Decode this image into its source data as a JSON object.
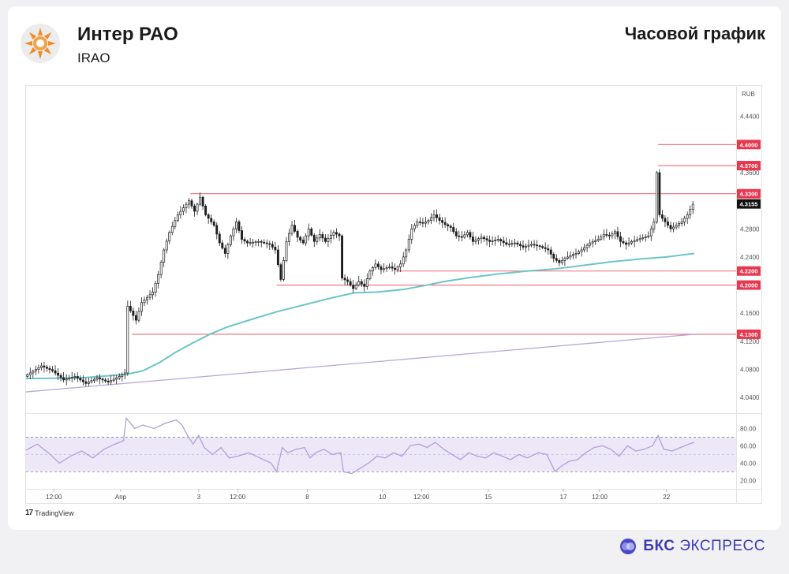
{
  "header": {
    "company": "Интер РАО",
    "ticker": "IRAO",
    "timeframe_title": "Часовой график"
  },
  "watermark": "TradingView",
  "brand": {
    "bold": "БКС",
    "regular": "ЭКСПРЕСС"
  },
  "colors": {
    "candle": "#1e1e1e",
    "ma": "#6dc5c7",
    "trend": "#b9a7d9",
    "level": "#ef6a77",
    "rsi": "#b29fdc",
    "rsi_band": "#ece8f8"
  },
  "chart_data": [
    {
      "type": "candlestick",
      "currency": "RUB",
      "ylim": [
        4.02,
        4.48
      ],
      "y_ticks": [
        "4.4400",
        "4.3600",
        "4.2800",
        "4.2400",
        "4.1600",
        "4.1200",
        "4.0800",
        "4.0400"
      ],
      "x_ticks": [
        {
          "label": "12:00",
          "i": 10
        },
        {
          "label": "Апр",
          "i": 34
        },
        {
          "label": "3",
          "i": 62
        },
        {
          "label": "12:00",
          "i": 76
        },
        {
          "label": "8",
          "i": 101
        },
        {
          "label": "10",
          "i": 128
        },
        {
          "label": "12:00",
          "i": 142
        },
        {
          "label": "15",
          "i": 166
        },
        {
          "label": "17",
          "i": 193
        },
        {
          "label": "12:00",
          "i": 206
        },
        {
          "label": "22",
          "i": 230
        }
      ],
      "levels": [
        {
          "label": "4.4000",
          "value": 4.4,
          "from_i": 227
        },
        {
          "label": "4.3700",
          "value": 4.37,
          "from_i": 227
        },
        {
          "label": "4.3300",
          "value": 4.33,
          "from_i": 59
        },
        {
          "label": "4.2200",
          "value": 4.22,
          "from_i": 133
        },
        {
          "label": "4.2000",
          "value": 4.2,
          "from_i": 90
        },
        {
          "label": "4.1300",
          "value": 4.13,
          "from_i": 38
        }
      ],
      "last_price": "4.3155",
      "last_value": 4.3155,
      "trendline": [
        {
          "i": 0,
          "v": 4.048
        },
        {
          "i": 240,
          "v": 4.13
        }
      ],
      "ma_points": [
        [
          0,
          4.067
        ],
        [
          20,
          4.068
        ],
        [
          36,
          4.073
        ],
        [
          42,
          4.078
        ],
        [
          48,
          4.09
        ],
        [
          54,
          4.105
        ],
        [
          60,
          4.118
        ],
        [
          66,
          4.13
        ],
        [
          72,
          4.14
        ],
        [
          80,
          4.15
        ],
        [
          90,
          4.162
        ],
        [
          100,
          4.172
        ],
        [
          110,
          4.182
        ],
        [
          118,
          4.189
        ],
        [
          126,
          4.19
        ],
        [
          136,
          4.194
        ],
        [
          144,
          4.2
        ],
        [
          150,
          4.205
        ],
        [
          160,
          4.211
        ],
        [
          170,
          4.216
        ],
        [
          180,
          4.22
        ],
        [
          190,
          4.223
        ],
        [
          200,
          4.228
        ],
        [
          210,
          4.233
        ],
        [
          220,
          4.237
        ],
        [
          230,
          4.24
        ],
        [
          240,
          4.245
        ]
      ],
      "price_path": [
        [
          0,
          4.07
        ],
        [
          6,
          4.085
        ],
        [
          10,
          4.078
        ],
        [
          14,
          4.065
        ],
        [
          18,
          4.07
        ],
        [
          22,
          4.06
        ],
        [
          26,
          4.068
        ],
        [
          30,
          4.062
        ],
        [
          34,
          4.07
        ],
        [
          36,
          4.075
        ],
        [
          37,
          4.17
        ],
        [
          40,
          4.15
        ],
        [
          42,
          4.175
        ],
        [
          46,
          4.19
        ],
        [
          48,
          4.215
        ],
        [
          50,
          4.25
        ],
        [
          52,
          4.275
        ],
        [
          55,
          4.3
        ],
        [
          57,
          4.31
        ],
        [
          59,
          4.32
        ],
        [
          61,
          4.305
        ],
        [
          63,
          4.325
        ],
        [
          65,
          4.3
        ],
        [
          68,
          4.285
        ],
        [
          70,
          4.26
        ],
        [
          72,
          4.245
        ],
        [
          74,
          4.27
        ],
        [
          76,
          4.29
        ],
        [
          78,
          4.265
        ],
        [
          80,
          4.26
        ],
        [
          84,
          4.262
        ],
        [
          88,
          4.258
        ],
        [
          90,
          4.25
        ],
        [
          92,
          4.208
        ],
        [
          94,
          4.262
        ],
        [
          96,
          4.285
        ],
        [
          98,
          4.268
        ],
        [
          100,
          4.26
        ],
        [
          102,
          4.28
        ],
        [
          104,
          4.262
        ],
        [
          106,
          4.272
        ],
        [
          108,
          4.262
        ],
        [
          111,
          4.275
        ],
        [
          113,
          4.27
        ],
        [
          114,
          4.21
        ],
        [
          116,
          4.205
        ],
        [
          118,
          4.195
        ],
        [
          120,
          4.205
        ],
        [
          122,
          4.198
        ],
        [
          124,
          4.22
        ],
        [
          126,
          4.23
        ],
        [
          128,
          4.222
        ],
        [
          131,
          4.226
        ],
        [
          133,
          4.222
        ],
        [
          135,
          4.23
        ],
        [
          137,
          4.25
        ],
        [
          139,
          4.28
        ],
        [
          141,
          4.29
        ],
        [
          143,
          4.288
        ],
        [
          145,
          4.292
        ],
        [
          147,
          4.3
        ],
        [
          149,
          4.292
        ],
        [
          151,
          4.286
        ],
        [
          153,
          4.282
        ],
        [
          155,
          4.27
        ],
        [
          157,
          4.268
        ],
        [
          159,
          4.275
        ],
        [
          161,
          4.262
        ],
        [
          164,
          4.268
        ],
        [
          167,
          4.262
        ],
        [
          170,
          4.265
        ],
        [
          173,
          4.258
        ],
        [
          176,
          4.26
        ],
        [
          179,
          4.254
        ],
        [
          182,
          4.258
        ],
        [
          185,
          4.255
        ],
        [
          188,
          4.25
        ],
        [
          190,
          4.238
        ],
        [
          192,
          4.232
        ],
        [
          194,
          4.238
        ],
        [
          196,
          4.242
        ],
        [
          198,
          4.245
        ],
        [
          200,
          4.25
        ],
        [
          203,
          4.26
        ],
        [
          206,
          4.265
        ],
        [
          208,
          4.272
        ],
        [
          210,
          4.27
        ],
        [
          212,
          4.276
        ],
        [
          214,
          4.262
        ],
        [
          216,
          4.258
        ],
        [
          218,
          4.262
        ],
        [
          221,
          4.266
        ],
        [
          224,
          4.27
        ],
        [
          226,
          4.29
        ],
        [
          227,
          4.36
        ],
        [
          228,
          4.3
        ],
        [
          230,
          4.29
        ],
        [
          232,
          4.28
        ],
        [
          234,
          4.285
        ],
        [
          236,
          4.29
        ],
        [
          238,
          4.3
        ],
        [
          240,
          4.315
        ]
      ]
    },
    {
      "type": "line",
      "indicator": "RSI",
      "ylim": [
        13,
        95
      ],
      "y_ticks": [
        "80.00",
        "60.00",
        "40.00",
        "20.00"
      ],
      "band": [
        30,
        70
      ],
      "points": [
        [
          0,
          55
        ],
        [
          4,
          62
        ],
        [
          8,
          52
        ],
        [
          12,
          40
        ],
        [
          16,
          48
        ],
        [
          20,
          54
        ],
        [
          24,
          46
        ],
        [
          28,
          56
        ],
        [
          32,
          62
        ],
        [
          35,
          66
        ],
        [
          36,
          92
        ],
        [
          39,
          80
        ],
        [
          42,
          84
        ],
        [
          46,
          80
        ],
        [
          50,
          86
        ],
        [
          54,
          90
        ],
        [
          56,
          84
        ],
        [
          58,
          72
        ],
        [
          60,
          62
        ],
        [
          62,
          72
        ],
        [
          64,
          58
        ],
        [
          67,
          50
        ],
        [
          70,
          58
        ],
        [
          73,
          46
        ],
        [
          76,
          48
        ],
        [
          80,
          52
        ],
        [
          84,
          46
        ],
        [
          88,
          40
        ],
        [
          90,
          30
        ],
        [
          92,
          58
        ],
        [
          94,
          52
        ],
        [
          97,
          56
        ],
        [
          100,
          58
        ],
        [
          102,
          46
        ],
        [
          104,
          52
        ],
        [
          107,
          56
        ],
        [
          110,
          50
        ],
        [
          113,
          52
        ],
        [
          114,
          30
        ],
        [
          117,
          28
        ],
        [
          120,
          34
        ],
        [
          123,
          40
        ],
        [
          126,
          48
        ],
        [
          129,
          46
        ],
        [
          132,
          52
        ],
        [
          135,
          48
        ],
        [
          138,
          60
        ],
        [
          141,
          62
        ],
        [
          144,
          58
        ],
        [
          147,
          64
        ],
        [
          150,
          56
        ],
        [
          153,
          50
        ],
        [
          156,
          44
        ],
        [
          159,
          52
        ],
        [
          162,
          48
        ],
        [
          165,
          46
        ],
        [
          168,
          52
        ],
        [
          171,
          48
        ],
        [
          174,
          44
        ],
        [
          177,
          50
        ],
        [
          180,
          46
        ],
        [
          184,
          52
        ],
        [
          187,
          50
        ],
        [
          190,
          30
        ],
        [
          192,
          36
        ],
        [
          195,
          42
        ],
        [
          198,
          44
        ],
        [
          201,
          52
        ],
        [
          204,
          58
        ],
        [
          207,
          60
        ],
        [
          210,
          56
        ],
        [
          213,
          48
        ],
        [
          216,
          60
        ],
        [
          219,
          54
        ],
        [
          222,
          56
        ],
        [
          225,
          60
        ],
        [
          227,
          72
        ],
        [
          229,
          56
        ],
        [
          232,
          54
        ],
        [
          235,
          58
        ],
        [
          238,
          62
        ],
        [
          240,
          64
        ]
      ]
    }
  ]
}
